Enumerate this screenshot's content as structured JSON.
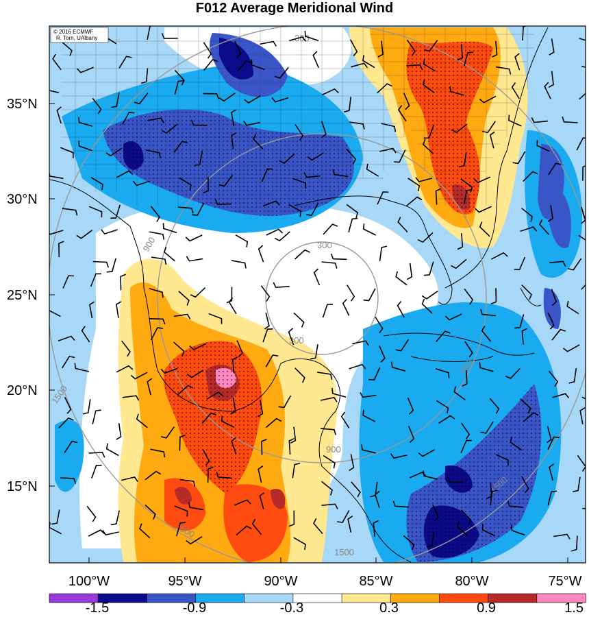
{
  "title": "F012 Average Meridional Wind",
  "credit": [
    "© 2016 ECMWF",
    "R. Torn, UAlbany"
  ],
  "lat_labels": [
    "35°N",
    "30°N",
    "25°N",
    "20°N",
    "15°N"
  ],
  "lon_labels": [
    "100°W",
    "95°W",
    "90°W",
    "85°W",
    "80°W",
    "75°W"
  ],
  "colorbar": {
    "labels": [
      "-1.5",
      "-0.9",
      "-0.3",
      "0.3",
      "0.9",
      "1.5"
    ],
    "colors": [
      "#9a3ad8",
      "#0a0a8a",
      "#3a55c8",
      "#1aaaf0",
      "#a8d8f8",
      "#ffffff",
      "#ffe890",
      "#ffaa10",
      "#ff4a10",
      "#b82a2a",
      "#ff88c0"
    ]
  },
  "fill_colors": {
    "dark_blue": "#0a0a8a",
    "blue": "#3a55c8",
    "sky": "#1aaaf0",
    "light_blue": "#a8d8f8",
    "light_yellow": "#ffe890",
    "orange": "#ffaa10",
    "red": "#ff4a10",
    "dark_red": "#b82a2a",
    "pink": "#ff88c0"
  },
  "contour_labels": [
    "300",
    "300",
    "900",
    "900",
    "900",
    "1500",
    "1500",
    "1500",
    "1500",
    "300"
  ]
}
